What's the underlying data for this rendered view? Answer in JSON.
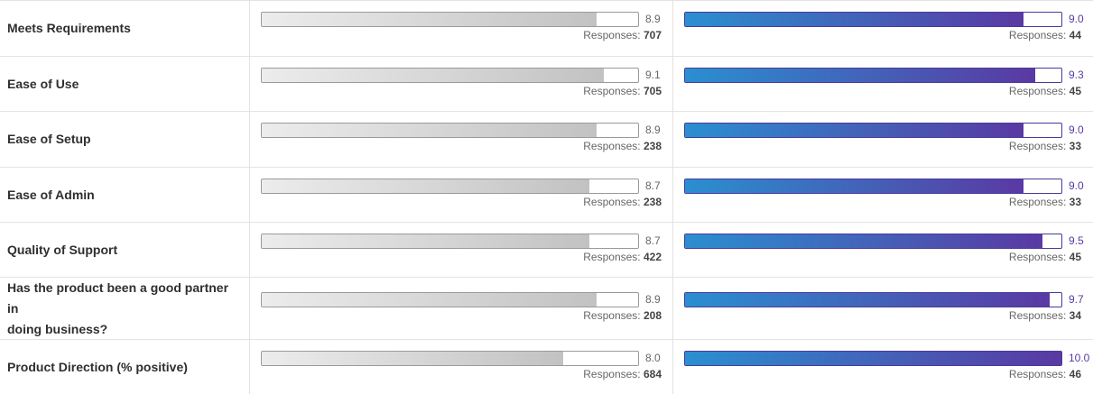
{
  "responses_label": "Responses:",
  "colors": {
    "product_a_bar_start": "#ececec",
    "product_a_bar_end": "#c2c2c2",
    "product_b_bar_start": "#2a8fd0",
    "product_b_bar_end": "#5a39a3",
    "product_b_score_text": "#5a39a3"
  },
  "max_score": 10,
  "rows": [
    {
      "label_lines": [
        "Meets Requirements"
      ],
      "a": {
        "score": "8.9",
        "value": 8.9,
        "responses": "707"
      },
      "b": {
        "score": "9.0",
        "value": 9.0,
        "responses": "44"
      }
    },
    {
      "label_lines": [
        "Ease of Use"
      ],
      "a": {
        "score": "9.1",
        "value": 9.1,
        "responses": "705"
      },
      "b": {
        "score": "9.3",
        "value": 9.3,
        "responses": "45"
      }
    },
    {
      "label_lines": [
        "Ease of Setup"
      ],
      "a": {
        "score": "8.9",
        "value": 8.9,
        "responses": "238"
      },
      "b": {
        "score": "9.0",
        "value": 9.0,
        "responses": "33"
      }
    },
    {
      "label_lines": [
        "Ease of Admin"
      ],
      "a": {
        "score": "8.7",
        "value": 8.7,
        "responses": "238"
      },
      "b": {
        "score": "9.0",
        "value": 9.0,
        "responses": "33"
      }
    },
    {
      "label_lines": [
        "Quality of Support"
      ],
      "a": {
        "score": "8.7",
        "value": 8.7,
        "responses": "422"
      },
      "b": {
        "score": "9.5",
        "value": 9.5,
        "responses": "45"
      }
    },
    {
      "label_lines": [
        "Has the product been a good partner in",
        "doing business?"
      ],
      "a": {
        "score": "8.9",
        "value": 8.9,
        "responses": "208"
      },
      "b": {
        "score": "9.7",
        "value": 9.7,
        "responses": "34"
      }
    },
    {
      "label_lines": [
        "Product Direction (% positive)"
      ],
      "a": {
        "score": "8.0",
        "value": 8.0,
        "responses": "684"
      },
      "b": {
        "score": "10.0",
        "value": 10.0,
        "responses": "46"
      }
    }
  ]
}
